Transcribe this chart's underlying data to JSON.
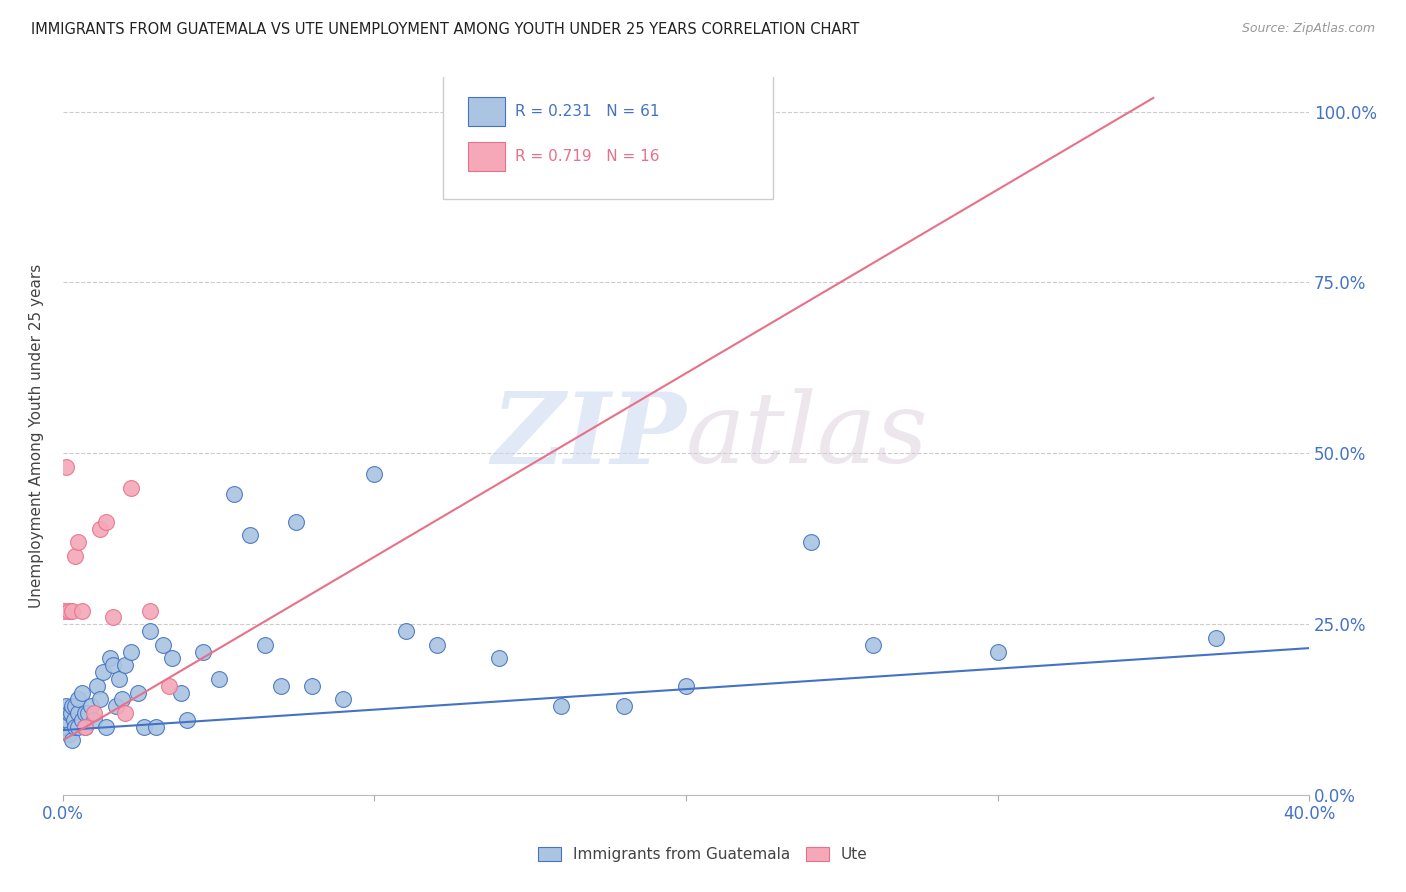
{
  "title": "IMMIGRANTS FROM GUATEMALA VS UTE UNEMPLOYMENT AMONG YOUTH UNDER 25 YEARS CORRELATION CHART",
  "source": "Source: ZipAtlas.com",
  "ylabel": "Unemployment Among Youth under 25 years",
  "legend_label1": "Immigrants from Guatemala",
  "legend_label2": "Ute",
  "legend_r1": "R = 0.231",
  "legend_n1": "N = 61",
  "legend_r2": "R = 0.719",
  "legend_n2": "N = 16",
  "watermark_zip": "ZIP",
  "watermark_atlas": "atlas",
  "color_blue": "#aac4e2",
  "color_pink": "#f4a8b8",
  "color_blue_line": "#4472c4",
  "color_pink_line": "#e8708a",
  "color_blue_text": "#4472c4",
  "color_pink_text": "#e8708a",
  "color_title": "#222222",
  "color_source": "#999999",
  "color_grid": "#cccccc",
  "xlim": [
    0.0,
    0.4
  ],
  "ylim": [
    0.0,
    1.05
  ],
  "blue_scatter_x": [
    0.0005,
    0.001,
    0.001,
    0.0015,
    0.002,
    0.002,
    0.0025,
    0.003,
    0.003,
    0.0035,
    0.004,
    0.004,
    0.005,
    0.005,
    0.005,
    0.006,
    0.006,
    0.007,
    0.007,
    0.008,
    0.009,
    0.01,
    0.011,
    0.012,
    0.013,
    0.014,
    0.015,
    0.016,
    0.017,
    0.018,
    0.019,
    0.02,
    0.022,
    0.024,
    0.026,
    0.028,
    0.03,
    0.032,
    0.035,
    0.038,
    0.04,
    0.045,
    0.05,
    0.055,
    0.06,
    0.065,
    0.07,
    0.075,
    0.08,
    0.09,
    0.1,
    0.11,
    0.12,
    0.14,
    0.16,
    0.18,
    0.2,
    0.24,
    0.26,
    0.3,
    0.37
  ],
  "blue_scatter_y": [
    0.1,
    0.13,
    0.1,
    0.11,
    0.12,
    0.09,
    0.12,
    0.08,
    0.13,
    0.11,
    0.1,
    0.13,
    0.12,
    0.1,
    0.14,
    0.11,
    0.15,
    0.12,
    0.1,
    0.12,
    0.13,
    0.11,
    0.16,
    0.14,
    0.18,
    0.1,
    0.2,
    0.19,
    0.13,
    0.17,
    0.14,
    0.19,
    0.21,
    0.15,
    0.1,
    0.24,
    0.1,
    0.22,
    0.2,
    0.15,
    0.11,
    0.21,
    0.17,
    0.44,
    0.38,
    0.22,
    0.16,
    0.4,
    0.16,
    0.14,
    0.47,
    0.24,
    0.22,
    0.2,
    0.13,
    0.13,
    0.16,
    0.37,
    0.22,
    0.21,
    0.23
  ],
  "pink_scatter_x": [
    0.0005,
    0.001,
    0.002,
    0.003,
    0.004,
    0.005,
    0.006,
    0.007,
    0.01,
    0.012,
    0.014,
    0.016,
    0.02,
    0.022,
    0.028,
    0.034
  ],
  "pink_scatter_y": [
    0.27,
    0.48,
    0.27,
    0.27,
    0.35,
    0.37,
    0.27,
    0.1,
    0.12,
    0.39,
    0.4,
    0.26,
    0.12,
    0.45,
    0.27,
    0.16
  ],
  "blue_line_x": [
    0.0,
    0.4
  ],
  "blue_line_y": [
    0.095,
    0.215
  ],
  "pink_line_x": [
    0.0,
    0.35
  ],
  "pink_line_y": [
    0.08,
    1.02
  ]
}
